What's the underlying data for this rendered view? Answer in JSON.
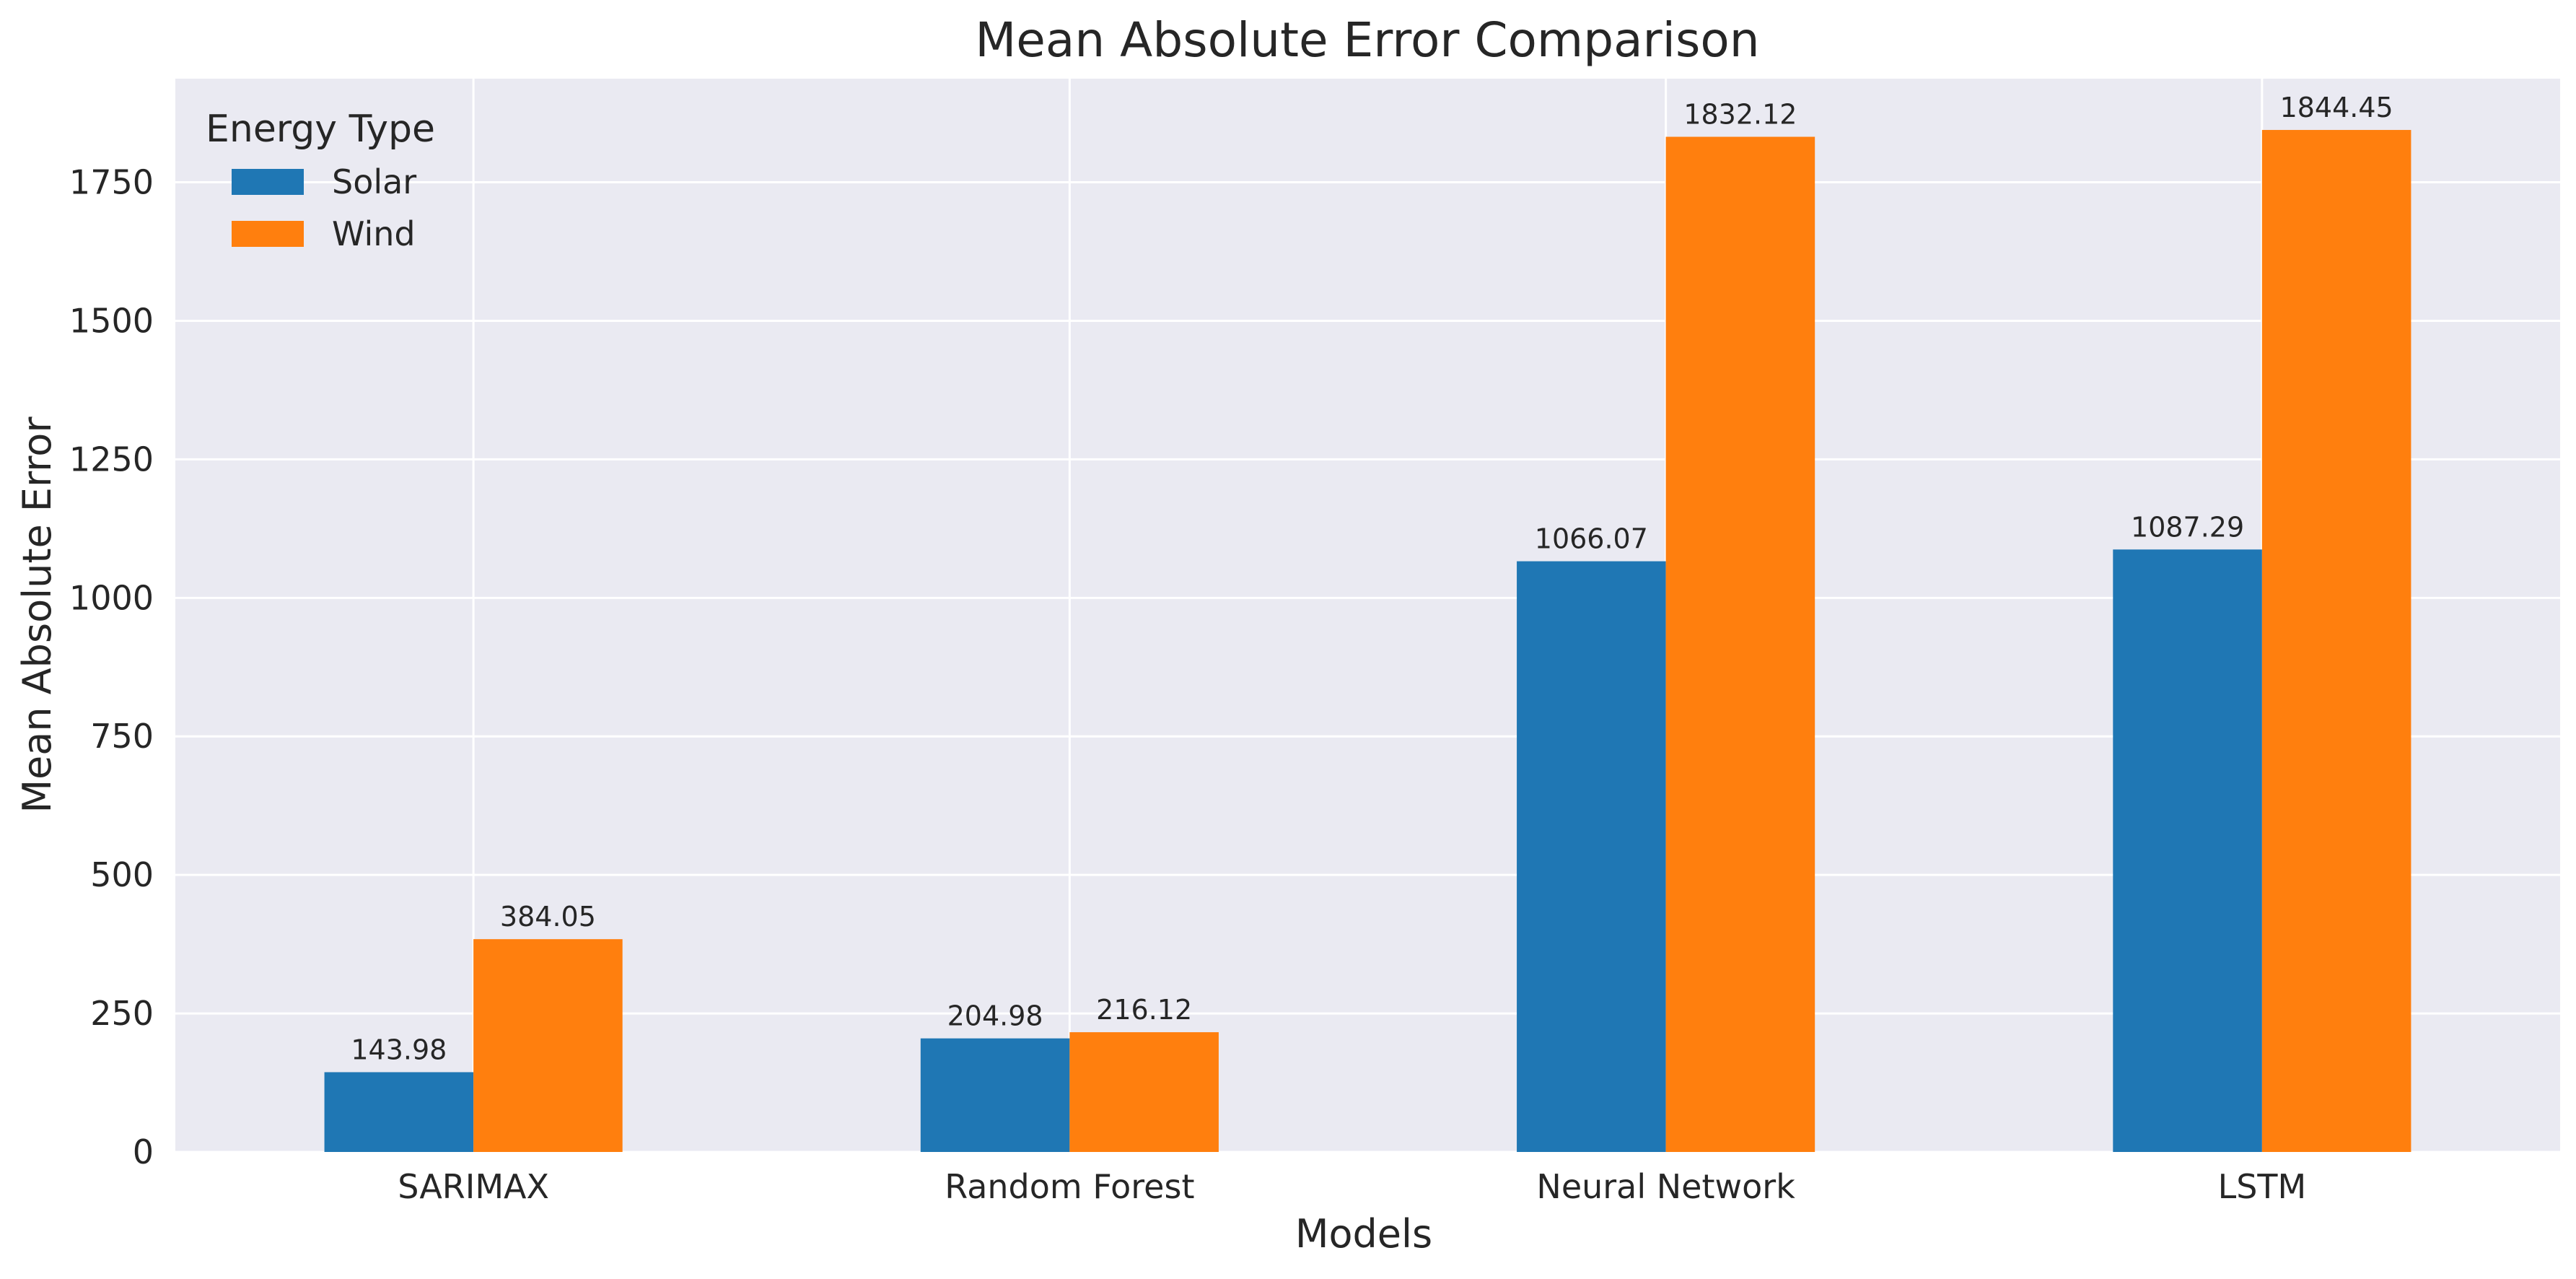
{
  "chart_data": {
    "type": "bar",
    "title": "Mean Absolute Error Comparison",
    "xlabel": "Models",
    "ylabel": "Mean Absolute Error",
    "categories": [
      "SARIMAX",
      "Random Forest",
      "Neural Network",
      "LSTM"
    ],
    "series": [
      {
        "name": "Solar",
        "values": [
          143.98,
          204.98,
          1066.07,
          1087.29
        ],
        "color": "#1f77b4"
      },
      {
        "name": "Wind",
        "values": [
          384.05,
          216.12,
          1832.12,
          1844.45
        ],
        "color": "#ff7f0e"
      }
    ],
    "data_labels": {
      "Solar": [
        "143.98",
        "204.98",
        "1066.07",
        "1087.29"
      ],
      "Wind": [
        "384.05",
        "216.12",
        "1832.12",
        "1844.45"
      ]
    },
    "ylim": [
      0,
      1937
    ],
    "yticks": [
      0,
      250,
      500,
      750,
      1000,
      1250,
      1500,
      1750
    ],
    "legend": {
      "title": "Energy Type",
      "position": "top-left"
    },
    "grid": true,
    "background": "#eaeaf2",
    "grid_color": "#ffffff"
  }
}
